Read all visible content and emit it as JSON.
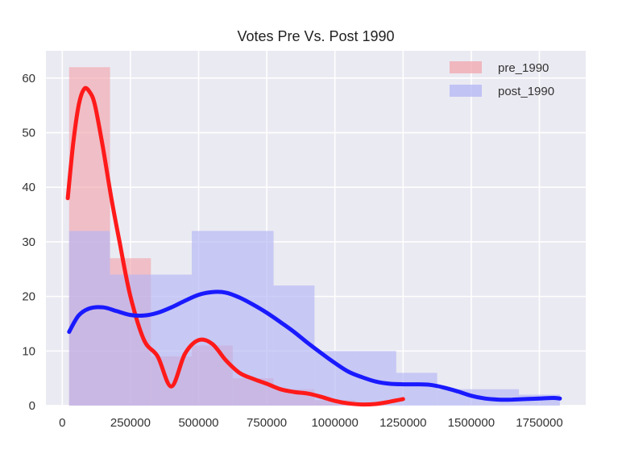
{
  "chart_data": {
    "type": "histogram",
    "title": "Votes Pre Vs. Post 1990",
    "xlabel": "",
    "ylabel": "",
    "xlim": [
      -60000,
      1920000
    ],
    "ylim": [
      0,
      65
    ],
    "grid": true,
    "x_ticks": [
      0,
      250000,
      500000,
      750000,
      1000000,
      1250000,
      1500000,
      1750000
    ],
    "x_tick_labels": [
      "0",
      "250000",
      "500000",
      "750000",
      "1000000",
      "1250000",
      "1500000",
      "1750000"
    ],
    "y_ticks": [
      0,
      10,
      20,
      30,
      40,
      50,
      60
    ],
    "y_tick_labels": [
      "0",
      "10",
      "20",
      "30",
      "40",
      "50",
      "60"
    ],
    "legend": {
      "placement": "top-right",
      "entries": [
        "pre_1990",
        "post_1990"
      ]
    },
    "series": [
      {
        "name": "pre_1990",
        "color": "#ff1a1a",
        "bar_fill": "#f2a6ad",
        "bins": [
          {
            "x0": 25000,
            "x1": 175000,
            "count": 62
          },
          {
            "x0": 175000,
            "x1": 325000,
            "count": 27
          },
          {
            "x0": 325000,
            "x1": 475000,
            "count": 9
          },
          {
            "x0": 475000,
            "x1": 625000,
            "count": 11
          },
          {
            "x0": 625000,
            "x1": 775000,
            "count": 5
          },
          {
            "x0": 775000,
            "x1": 925000,
            "count": 3
          },
          {
            "x0": 925000,
            "x1": 1075000,
            "count": 1
          }
        ],
        "kde": {
          "x": [
            20000,
            40000,
            60000,
            80000,
            100000,
            120000,
            150000,
            180000,
            210000,
            250000,
            300000,
            350000,
            400000,
            450000,
            500000,
            550000,
            600000,
            650000,
            700000,
            750000,
            800000,
            850000,
            900000,
            950000,
            1000000,
            1050000,
            1100000,
            1150000,
            1200000,
            1250000
          ],
          "y": [
            38,
            48,
            55,
            58,
            57.5,
            55,
            47,
            38,
            30,
            20,
            12,
            7,
            3.5,
            2.5,
            2,
            1.3,
            1.3,
            1,
            0.9,
            0.7,
            0.5,
            0.3,
            0.2,
            0.1,
            0.05,
            0.1,
            0.1,
            0.2,
            0.2,
            0.3
          ],
          "y_adjust": [
            0,
            0,
            0,
            0,
            0,
            0,
            0,
            0,
            0,
            0,
            0,
            2,
            0,
            7,
            10,
            10,
            7,
            5,
            4,
            3.3,
            2.5,
            2.2,
            2,
            1.5,
            0.8,
            0.3,
            0.1,
            0.1,
            0.5,
            0.9
          ]
        }
      },
      {
        "name": "post_1990",
        "color": "#1a1aff",
        "bar_fill": "#b3b6f4",
        "bins": [
          {
            "x0": 25000,
            "x1": 175000,
            "count": 32
          },
          {
            "x0": 175000,
            "x1": 325000,
            "count": 24
          },
          {
            "x0": 325000,
            "x1": 475000,
            "count": 24
          },
          {
            "x0": 475000,
            "x1": 775000,
            "count": 32
          },
          {
            "x0": 775000,
            "x1": 925000,
            "count": 22
          },
          {
            "x0": 925000,
            "x1": 1075000,
            "count": 10
          },
          {
            "x0": 1075000,
            "x1": 1225000,
            "count": 10
          },
          {
            "x0": 1225000,
            "x1": 1375000,
            "count": 6
          },
          {
            "x0": 1375000,
            "x1": 1525000,
            "count": 3
          },
          {
            "x0": 1525000,
            "x1": 1675000,
            "count": 3
          },
          {
            "x0": 1675000,
            "x1": 1825000,
            "count": 2
          }
        ],
        "kde": {
          "x": [
            25000,
            60000,
            100000,
            150000,
            200000,
            250000,
            300000,
            350000,
            400000,
            450000,
            500000,
            550000,
            600000,
            650000,
            700000,
            750000,
            800000,
            850000,
            900000,
            950000,
            1000000,
            1050000,
            1100000,
            1150000,
            1200000,
            1250000,
            1300000,
            1350000,
            1400000,
            1450000,
            1500000,
            1550000,
            1600000,
            1650000,
            1700000,
            1750000,
            1800000,
            1825000
          ],
          "y": [
            13.5,
            16.5,
            17.8,
            18,
            17.3,
            16.6,
            16.5,
            17,
            18,
            19.2,
            20.3,
            20.8,
            20.7,
            19.8,
            18.5,
            17,
            15.3,
            13.5,
            11.5,
            9.6,
            7.8,
            6.2,
            5.2,
            4.4,
            4,
            3.9,
            3.9,
            3.8,
            3.3,
            2.6,
            1.8,
            1.3,
            1.1,
            1.1,
            1.2,
            1.3,
            1.4,
            1.3
          ]
        }
      }
    ]
  }
}
